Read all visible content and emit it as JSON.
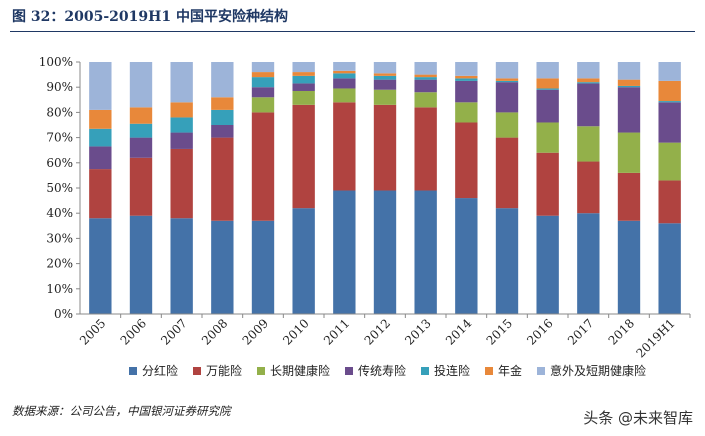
{
  "title": "图 32：2005-2019H1 中国平安险种结构",
  "source": "数据来源：公司公告，中国银河证券研究院",
  "watermark": "头条 @未来智库",
  "chart_data": {
    "type": "bar",
    "stacked": true,
    "categories": [
      "2005",
      "2006",
      "2007",
      "2008",
      "2009",
      "2010",
      "2011",
      "2012",
      "2013",
      "2014",
      "2015",
      "2016",
      "2017",
      "2018",
      "2019H1"
    ],
    "ylim": [
      0,
      100
    ],
    "yticks": [
      "0%",
      "10%",
      "20%",
      "30%",
      "40%",
      "50%",
      "60%",
      "70%",
      "80%",
      "90%",
      "100%"
    ],
    "legend_position": "bottom",
    "series": [
      {
        "name": "分红险",
        "color": "#4472a8",
        "values": [
          38,
          39,
          38,
          37,
          37,
          42,
          49,
          49,
          49,
          46,
          42,
          39,
          40,
          37,
          36
        ]
      },
      {
        "name": "万能险",
        "color": "#b04340",
        "values": [
          19.5,
          23,
          27.5,
          33,
          43,
          41,
          35,
          34,
          33,
          30,
          28,
          25,
          20.5,
          19,
          17
        ]
      },
      {
        "name": "长期健康险",
        "color": "#93b04a",
        "values": [
          0,
          0,
          0,
          0,
          6,
          5.5,
          5.5,
          6,
          6,
          8,
          10,
          12,
          14,
          16,
          15
        ]
      },
      {
        "name": "传统寿险",
        "color": "#6a4c8c",
        "values": [
          9,
          8,
          6.5,
          5,
          4,
          3,
          4,
          4,
          5,
          8.5,
          12,
          13,
          17,
          18,
          16
        ]
      },
      {
        "name": "投连险",
        "color": "#36a0ba",
        "values": [
          7,
          5.5,
          6,
          6,
          4,
          3,
          2,
          1.5,
          1,
          1,
          0.5,
          0.5,
          0.5,
          0.5,
          0.5
        ]
      },
      {
        "name": "年金",
        "color": "#e8883a",
        "values": [
          7.5,
          6.5,
          6,
          5,
          2,
          1.5,
          1,
          1,
          1,
          1,
          1,
          4,
          1.5,
          2.5,
          8
        ]
      },
      {
        "name": "意外及短期健康险",
        "color": "#9db4d9",
        "values": [
          19,
          18,
          16,
          14,
          4,
          4,
          3.5,
          4.5,
          5,
          5.5,
          6.5,
          6.5,
          6.5,
          7,
          7.5
        ]
      }
    ]
  }
}
